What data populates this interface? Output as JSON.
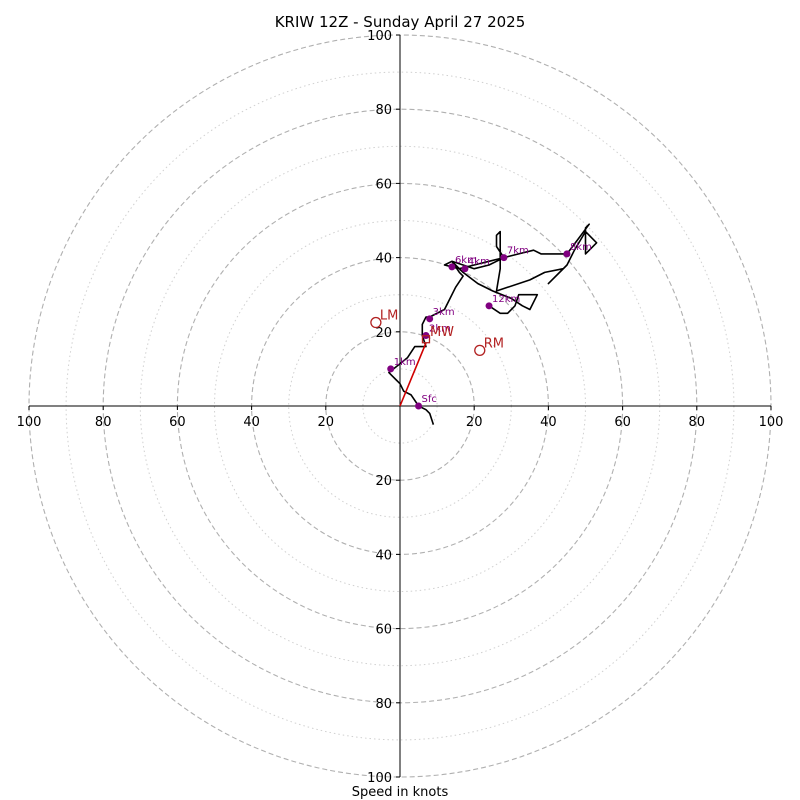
{
  "chart_data": {
    "type": "hodograph",
    "title": "KRIW 12Z - Sunday April 27 2025",
    "xlabel": "Speed in knots",
    "units": "knots",
    "range": [
      -100,
      100
    ],
    "ring_values": [
      20,
      40,
      60,
      80,
      100
    ],
    "minor_ring_values": [
      10,
      30,
      50,
      70,
      90
    ],
    "tick_labels": [
      "100",
      "80",
      "60",
      "40",
      "20",
      "20",
      "40",
      "60",
      "80",
      "100"
    ],
    "grid": true,
    "trace": [
      [
        9,
        -5
      ],
      [
        8,
        -2
      ],
      [
        7,
        -1
      ],
      [
        5,
        0
      ],
      [
        3,
        3
      ],
      [
        1,
        4
      ],
      [
        0,
        6
      ],
      [
        -1,
        7
      ],
      [
        -2,
        8
      ],
      [
        -3,
        9
      ],
      [
        2,
        13
      ],
      [
        4,
        16
      ],
      [
        6,
        16
      ],
      [
        7,
        16
      ],
      [
        6,
        19
      ],
      [
        6,
        22
      ],
      [
        7,
        24
      ],
      [
        8,
        24
      ],
      [
        12,
        26
      ],
      [
        13,
        28
      ],
      [
        15,
        32
      ],
      [
        17,
        35
      ],
      [
        16,
        36
      ],
      [
        14,
        39
      ],
      [
        17,
        38
      ],
      [
        20,
        37
      ],
      [
        24,
        38
      ],
      [
        26,
        39
      ],
      [
        28,
        40
      ],
      [
        26,
        43
      ],
      [
        26,
        46
      ],
      [
        27,
        47
      ],
      [
        27,
        45
      ],
      [
        27,
        42
      ],
      [
        27,
        37
      ],
      [
        26,
        31
      ],
      [
        29,
        32
      ],
      [
        35,
        34
      ],
      [
        39,
        36
      ],
      [
        44,
        37
      ],
      [
        40,
        33
      ],
      [
        45,
        38
      ],
      [
        47,
        42
      ],
      [
        50,
        47
      ],
      [
        52,
        45
      ],
      [
        53,
        44
      ],
      [
        50,
        41
      ],
      [
        50,
        45
      ],
      [
        50,
        48
      ],
      [
        51,
        49
      ],
      [
        48,
        45
      ],
      [
        45,
        41
      ],
      [
        40,
        41
      ],
      [
        38,
        41
      ],
      [
        36,
        42
      ],
      [
        32,
        41
      ],
      [
        28,
        40
      ],
      [
        24,
        39
      ],
      [
        20,
        38
      ],
      [
        16,
        37
      ],
      [
        12,
        38
      ],
      [
        14,
        39
      ],
      [
        15,
        38
      ],
      [
        17,
        36
      ],
      [
        21,
        33
      ],
      [
        25,
        31
      ],
      [
        30,
        29
      ],
      [
        33,
        27
      ],
      [
        35,
        26
      ],
      [
        37,
        30
      ],
      [
        33,
        30
      ],
      [
        32,
        30
      ],
      [
        31,
        27
      ],
      [
        29,
        25
      ],
      [
        27,
        25
      ],
      [
        24,
        27
      ]
    ],
    "height_points": [
      {
        "label": "Sfc",
        "u": 5,
        "v": 0
      },
      {
        "label": "1km",
        "u": -2.5,
        "v": 10
      },
      {
        "label": "2km",
        "u": 7,
        "v": 19
      },
      {
        "label": "3km",
        "u": 8,
        "v": 23.5
      },
      {
        "label": "4km",
        "u": 17.5,
        "v": 37
      },
      {
        "label": "6km",
        "u": 14,
        "v": 37.5
      },
      {
        "label": "7km",
        "u": 28,
        "v": 40
      },
      {
        "label": "8km",
        "u": 45,
        "v": 41
      },
      {
        "label": "12km",
        "u": 24,
        "v": 27
      }
    ],
    "shear_vector": {
      "from": [
        0,
        0
      ],
      "to": [
        7,
        17
      ],
      "color": "#d00000"
    },
    "motion_points": [
      {
        "label": "LM",
        "u": -6.5,
        "v": 22.5,
        "marker": "circle"
      },
      {
        "label": "RM",
        "u": 21.5,
        "v": 15,
        "marker": "circle"
      },
      {
        "label": "MW",
        "u": 7,
        "v": 18,
        "marker": "square"
      }
    ],
    "colors": {
      "trace": "#000000",
      "height_points": "#800080",
      "motion": "#b22222",
      "major_grid": "#b0b0b0",
      "minor_grid": "#d0d0d0"
    }
  }
}
